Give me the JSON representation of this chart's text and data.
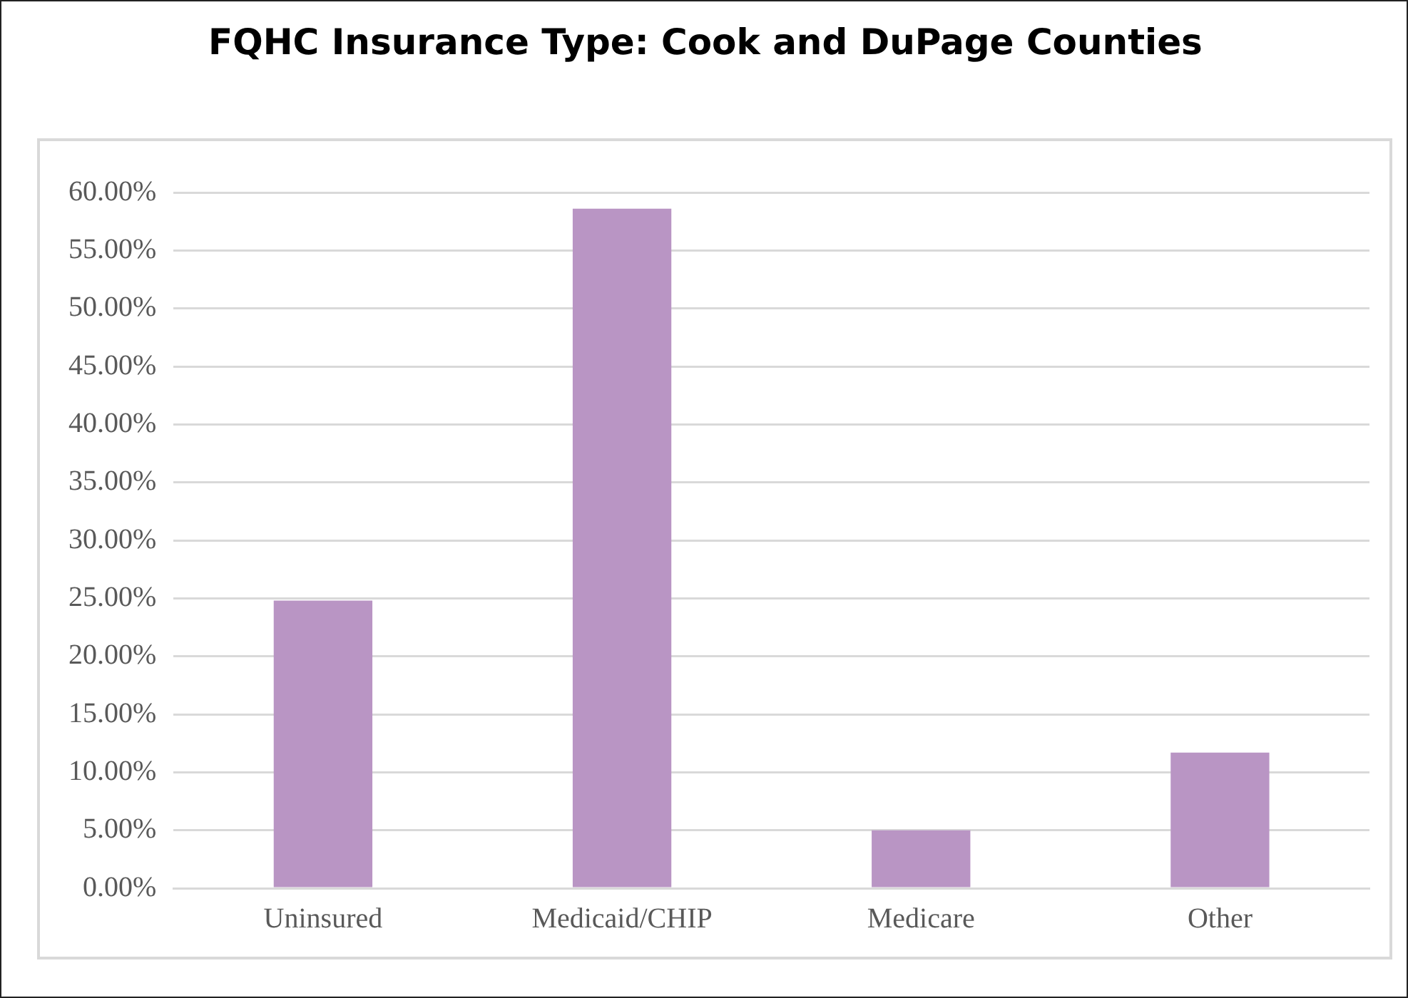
{
  "chart_data": {
    "type": "bar",
    "title": "FQHC Insurance Type: Cook and DuPage Counties",
    "categories": [
      "Uninsured",
      "Medicaid/CHIP",
      "Medicare",
      "Other"
    ],
    "values": [
      24.8,
      58.6,
      5.0,
      11.7
    ],
    "color": "#b995c4",
    "ylim": [
      0,
      60
    ],
    "yticks": [
      {
        "value": 0,
        "label": "0.00%"
      },
      {
        "value": 5,
        "label": "5.00%"
      },
      {
        "value": 10,
        "label": "10.00%"
      },
      {
        "value": 15,
        "label": "15.00%"
      },
      {
        "value": 20,
        "label": "20.00%"
      },
      {
        "value": 25,
        "label": "25.00%"
      },
      {
        "value": 30,
        "label": "30.00%"
      },
      {
        "value": 35,
        "label": "35.00%"
      },
      {
        "value": 40,
        "label": "40.00%"
      },
      {
        "value": 45,
        "label": "45.00%"
      },
      {
        "value": 50,
        "label": "50.00%"
      },
      {
        "value": 55,
        "label": "55.00%"
      },
      {
        "value": 60,
        "label": "60.00%"
      }
    ],
    "grid": "y",
    "legend": false
  }
}
